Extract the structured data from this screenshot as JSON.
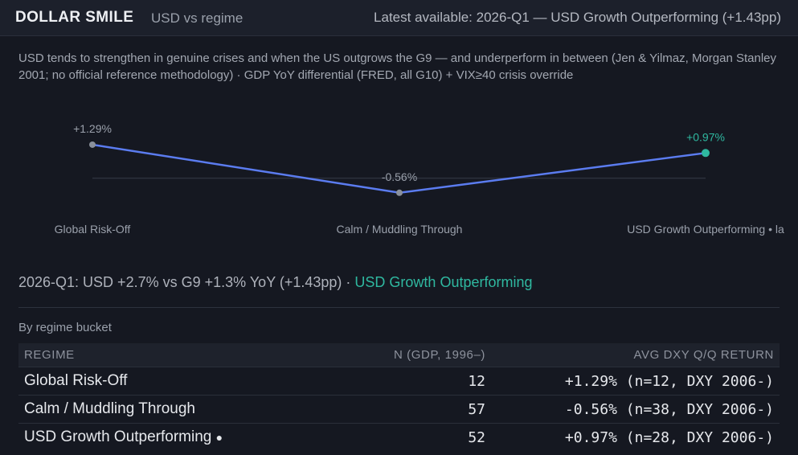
{
  "header": {
    "brand": "DOLLAR SMILE",
    "subtitle": "USD vs regime",
    "latest": "Latest available: 2026-Q1 — USD Growth Outperforming (+1.43pp)"
  },
  "description": "USD tends to strengthen in genuine crises and when the US outgrows the G9 — and underperform in between (Jen & Yilmaz, Morgan Stanley 2001; no official reference methodology) · GDP YoY differential (FRED, all G10) + VIX≥40 crisis override",
  "colors": {
    "line": "#5b7cf0",
    "point": "#8a909b",
    "current_point": "#2fb8a0",
    "zero_line": "#2c313c",
    "accent": "#2fb8a0"
  },
  "chart_data": {
    "type": "line",
    "categories": [
      "Global Risk-Off",
      "Calm / Muddling Through",
      "USD Growth Outperforming • la"
    ],
    "values": [
      1.29,
      -0.56,
      0.97
    ],
    "data_labels": [
      "+1.29%",
      "-0.56%",
      "+0.97%"
    ],
    "highlight_index": 2,
    "baseline": 0,
    "ylim": [
      -1.0,
      2.0
    ],
    "grid": false
  },
  "summary": {
    "text": "2026-Q1: USD +2.7% vs G9 +1.3% YoY (+1.43pp) · ",
    "regime": "USD Growth Outperforming"
  },
  "table": {
    "title": "By regime bucket",
    "headers": [
      "REGIME",
      "N (GDP, 1996–)",
      "AVG DXY Q/Q RETURN"
    ],
    "rows": [
      {
        "regime": "Global Risk-Off",
        "current_marker": "",
        "n": "12",
        "avg": "+1.29% (n=12, DXY 2006-)"
      },
      {
        "regime": "Calm / Muddling Through",
        "current_marker": "",
        "n": "57",
        "avg": "-0.56% (n=38, DXY 2006-)"
      },
      {
        "regime": "USD Growth Outperforming",
        "current_marker": "●",
        "n": "52",
        "avg": "+0.97% (n=28, DXY 2006-)"
      }
    ]
  }
}
